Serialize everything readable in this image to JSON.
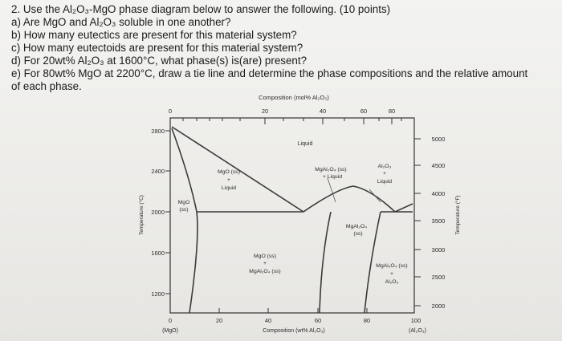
{
  "question": {
    "title": "2. Use the Al₂O₃-MgO phase diagram below to answer the following. (10 points)",
    "items": [
      "a) Are MgO and Al₂O₃ soluble in one another?",
      "b) How many eutectics are present for this material system?",
      "c) How many eutectoids are present for this material system?",
      "d) For 20wt% Al₂O₃ at 1600°C, what phase(s) is(are) present?",
      "e) For 80wt% MgO at 2200°C, draw a tie line and determine the phase compositions and the relative amount",
      "of each phase."
    ]
  },
  "diagram": {
    "top_axis_title": "Composition (mol% Al₂O₃)",
    "top_ticks": [
      "0",
      "20",
      "40",
      "60",
      "80"
    ],
    "bottom_ticks": [
      "0",
      "20",
      "40",
      "60",
      "80",
      "100"
    ],
    "bottom_end_labels": [
      "(MgO)",
      "(Al₂O₃)"
    ],
    "bottom_axis_title": "Composition (wt% Al₂O₃)",
    "left_axis_title": "Temperature (°C)",
    "left_ticks": [
      "2800",
      "2400",
      "2000",
      "1600",
      "1200"
    ],
    "right_axis_title": "Temperature (°F)",
    "right_ticks": [
      "5000",
      "4500",
      "4000",
      "3500",
      "3000",
      "2500",
      "2000"
    ],
    "regions": {
      "liquid": "Liquid",
      "mgo_ss_liquid": [
        "MgO (ss)",
        "+",
        "Liquid"
      ],
      "mgo_ss": [
        "MgO",
        "(ss)"
      ],
      "spinel_ss_liquid": [
        "MgAl₂O₄ (ss)",
        "+ Liquid"
      ],
      "al2o3_liquid": [
        "Al₂O₃",
        "+",
        "Liquid"
      ],
      "spinel_ss": [
        "MgAl₂O₄",
        "(ss)"
      ],
      "mgo_ss_spinel_ss": [
        "MgO (ss)",
        "+",
        "MgAl₂O₄ (ss)"
      ],
      "spinel_ss_al2o3": [
        "MgAl₂O₄ (ss)",
        "+",
        "Al₂O₃"
      ]
    }
  }
}
